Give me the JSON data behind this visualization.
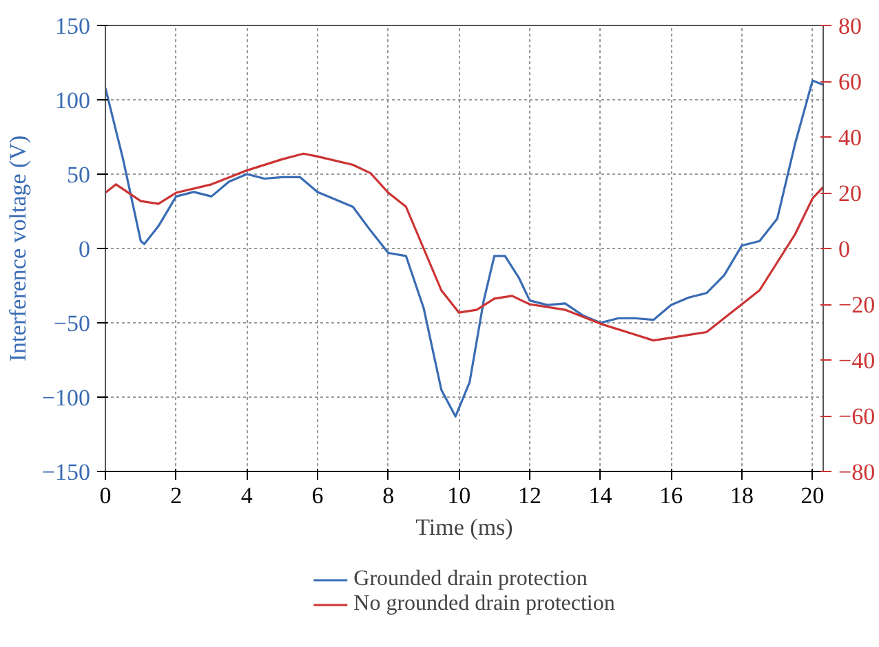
{
  "chart_data": {
    "type": "line",
    "xlabel": "Time (ms)",
    "ylabel": "Interference voltage (V)",
    "xlim": [
      0,
      20.3
    ],
    "ylim": [
      -150,
      150
    ],
    "y2lim": [
      -80,
      80
    ],
    "xticks": [
      0,
      2,
      4,
      6,
      8,
      10,
      12,
      14,
      16,
      18,
      20
    ],
    "yticks": [
      -150,
      -100,
      -50,
      0,
      50,
      100,
      150
    ],
    "y2ticks": [
      -80,
      -60,
      -40,
      -20,
      0,
      20,
      40,
      60,
      80
    ],
    "grid": true,
    "legend": "bottom",
    "line_style": "solid",
    "marker": "none",
    "series": [
      {
        "name": "Grounded drain protection",
        "color": "#3a6cb4",
        "x": [
          0,
          0.5,
          1,
          1.1,
          1.5,
          2,
          2.5,
          3,
          3.5,
          4,
          4.5,
          5,
          5.5,
          6,
          6.5,
          7,
          7.5,
          8,
          8.5,
          9,
          9.5,
          9.9,
          10.3,
          10.7,
          11,
          11.3,
          11.7,
          12,
          12.5,
          13,
          13.5,
          14,
          14.5,
          15,
          15.5,
          16,
          16.5,
          17,
          17.5,
          18,
          18.5,
          19,
          19.5,
          20,
          20.3
        ],
        "values": [
          108,
          60,
          5,
          3,
          15,
          35,
          38,
          35,
          45,
          50,
          47,
          48,
          48,
          38,
          33,
          28,
          12,
          -3,
          -5,
          -40,
          -95,
          -113,
          -90,
          -35,
          -5,
          -5,
          -20,
          -35,
          -38,
          -37,
          -45,
          -50,
          -47,
          -47,
          -48,
          -38,
          -33,
          -30,
          -18,
          2,
          5,
          20,
          70,
          113,
          110
        ]
      },
      {
        "name": "No grounded drain protection",
        "color": "#cc3333",
        "axis": "y2",
        "x": [
          0,
          0.3,
          1,
          1.5,
          2,
          3,
          4,
          5,
          5.6,
          6,
          7,
          7.5,
          8,
          8.5,
          9,
          9.5,
          10,
          10.5,
          11,
          11.5,
          12,
          13,
          14,
          15,
          15.5,
          16,
          17,
          17.5,
          18,
          18.5,
          19,
          19.5,
          20,
          20.3
        ],
        "values": [
          20,
          23,
          17,
          16,
          20,
          23,
          28,
          32,
          34,
          33,
          30,
          27,
          20,
          15,
          0,
          -15,
          -23,
          -22,
          -18,
          -17,
          -20,
          -22,
          -27,
          -31,
          -33,
          -32,
          -30,
          -25,
          -20,
          -15,
          -5,
          5,
          18,
          22
        ]
      }
    ]
  }
}
